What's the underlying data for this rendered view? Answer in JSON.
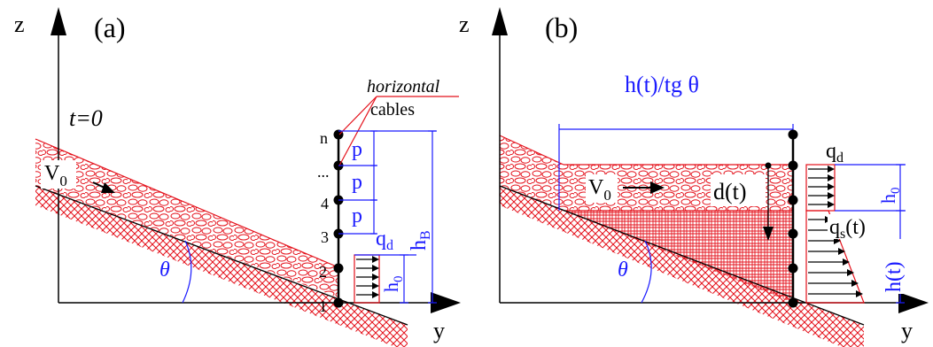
{
  "colors": {
    "axis": "#000000",
    "annotation": "#1a1aff",
    "debris": "#e4111b",
    "barrier": "#000000"
  },
  "panel_a": {
    "tag": "(a)",
    "z_label": "z",
    "y_label": "y",
    "time_label": "t=0",
    "velocity_main": "V",
    "velocity_sub": "0",
    "angle_label": "θ",
    "callout_line1": "horizontal",
    "callout_line2": "cables",
    "node_labels": [
      "1",
      "2",
      "3",
      "4",
      "...",
      "n"
    ],
    "spacing_label": "p",
    "load_main": "q",
    "load_sub": "d",
    "depth_main": "h",
    "depth_sub": "0",
    "height_main": "h",
    "height_sub": "B"
  },
  "panel_b": {
    "tag": "(b)",
    "z_label": "z",
    "y_label": "y",
    "span_label": "h(t)/tg θ",
    "velocity_main": "V",
    "velocity_sub": "0",
    "angle_label": "θ",
    "load_d_main": "q",
    "load_d_sub": "d",
    "load_s_main": "q",
    "load_s_sub": "s",
    "load_s_arg": "(t)",
    "depth_main": "h",
    "depth_sub": "0",
    "deposit_label": "h(t)",
    "deflection_label": "d(t)"
  }
}
